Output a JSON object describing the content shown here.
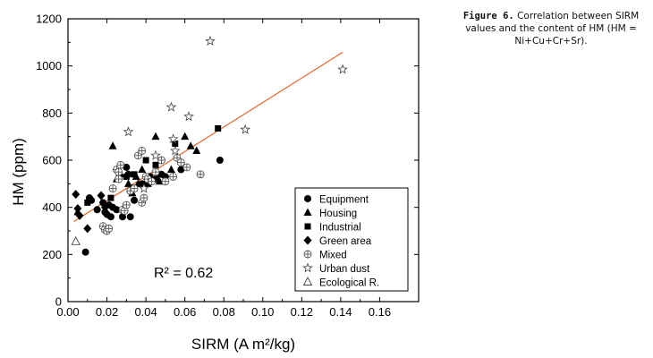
{
  "caption": {
    "label": "Figure 6.",
    "text": "Correlation between SIRM values and the content of HM (HM = Ni+Cu+Cr+Sr)."
  },
  "chart_data": {
    "type": "scatter",
    "title": "",
    "xlabel": "SIRM (A m²/kg)",
    "ylabel": "HM (ppm)",
    "xlim": [
      0.0,
      0.18
    ],
    "ylim": [
      0,
      1200
    ],
    "x_ticks": [
      0.0,
      0.02,
      0.04,
      0.06,
      0.08,
      0.1,
      0.12,
      0.14,
      0.16
    ],
    "x_tick_labels": [
      "0.00",
      "0.02",
      "0.04",
      "0.06",
      "0.08",
      "0.10",
      "0.12",
      "0.14",
      "0.16"
    ],
    "y_ticks": [
      0,
      200,
      400,
      600,
      800,
      1000,
      1200
    ],
    "y_tick_labels": [
      "0",
      "200",
      "400",
      "600",
      "800",
      "1000",
      "1200"
    ],
    "annotation": "R² = 0.62",
    "legend_position": "bottom-right",
    "regression": {
      "x": [
        0.003,
        0.141
      ],
      "y": [
        340,
        1058
      ],
      "color": "#e0682a"
    },
    "series": [
      {
        "name": "Equipment",
        "marker": "circle",
        "points": [
          [
            0.009,
            210
          ],
          [
            0.012,
            430
          ],
          [
            0.011,
            440
          ],
          [
            0.015,
            390
          ],
          [
            0.018,
            420
          ],
          [
            0.019,
            380
          ],
          [
            0.02,
            370
          ],
          [
            0.021,
            410
          ],
          [
            0.022,
            360
          ],
          [
            0.023,
            400
          ],
          [
            0.025,
            390
          ],
          [
            0.028,
            360
          ],
          [
            0.03,
            570
          ],
          [
            0.031,
            540
          ],
          [
            0.032,
            360
          ],
          [
            0.034,
            430
          ],
          [
            0.038,
            500
          ],
          [
            0.04,
            500
          ],
          [
            0.042,
            530
          ],
          [
            0.045,
            520
          ],
          [
            0.046,
            540
          ],
          [
            0.048,
            540
          ],
          [
            0.05,
            530
          ],
          [
            0.058,
            560
          ],
          [
            0.078,
            600
          ]
        ]
      },
      {
        "name": "Housing",
        "marker": "triangle",
        "points": [
          [
            0.005,
            380
          ],
          [
            0.023,
            660
          ],
          [
            0.025,
            520
          ],
          [
            0.027,
            540
          ],
          [
            0.031,
            500
          ],
          [
            0.033,
            460
          ],
          [
            0.035,
            530
          ],
          [
            0.036,
            500
          ],
          [
            0.038,
            560
          ],
          [
            0.041,
            500
          ],
          [
            0.043,
            520
          ],
          [
            0.045,
            700
          ],
          [
            0.047,
            510
          ],
          [
            0.053,
            560
          ],
          [
            0.06,
            700
          ],
          [
            0.063,
            660
          ],
          [
            0.066,
            640
          ]
        ]
      },
      {
        "name": "Industrial",
        "marker": "square",
        "points": [
          [
            0.01,
            420
          ],
          [
            0.022,
            440
          ],
          [
            0.03,
            530
          ],
          [
            0.034,
            540
          ],
          [
            0.04,
            600
          ],
          [
            0.045,
            580
          ],
          [
            0.055,
            670
          ],
          [
            0.077,
            735
          ]
        ]
      },
      {
        "name": "Green area",
        "marker": "diamond",
        "points": [
          [
            0.004,
            455
          ],
          [
            0.005,
            395
          ],
          [
            0.006,
            365
          ],
          [
            0.01,
            310
          ],
          [
            0.017,
            450
          ],
          [
            0.019,
            400
          ],
          [
            0.033,
            480
          ]
        ]
      },
      {
        "name": "Mixed",
        "marker": "circle-plus",
        "points": [
          [
            0.018,
            320
          ],
          [
            0.019,
            305
          ],
          [
            0.02,
            300
          ],
          [
            0.021,
            310
          ],
          [
            0.023,
            480
          ],
          [
            0.025,
            560
          ],
          [
            0.026,
            520
          ],
          [
            0.026,
            550
          ],
          [
            0.027,
            580
          ],
          [
            0.028,
            390
          ],
          [
            0.029,
            385
          ],
          [
            0.03,
            410
          ],
          [
            0.032,
            470
          ],
          [
            0.034,
            480
          ],
          [
            0.036,
            620
          ],
          [
            0.038,
            640
          ],
          [
            0.038,
            420
          ],
          [
            0.039,
            440
          ],
          [
            0.04,
            530
          ],
          [
            0.041,
            520
          ],
          [
            0.043,
            510
          ],
          [
            0.045,
            550
          ],
          [
            0.048,
            600
          ],
          [
            0.05,
            510
          ],
          [
            0.054,
            530
          ],
          [
            0.056,
            610
          ],
          [
            0.058,
            590
          ],
          [
            0.061,
            570
          ],
          [
            0.068,
            540
          ]
        ]
      },
      {
        "name": "Urban dust",
        "marker": "star",
        "points": [
          [
            0.031,
            720
          ],
          [
            0.039,
            480
          ],
          [
            0.045,
            620
          ],
          [
            0.053,
            825
          ],
          [
            0.054,
            690
          ],
          [
            0.055,
            640
          ],
          [
            0.062,
            785
          ],
          [
            0.073,
            1105
          ],
          [
            0.091,
            730
          ],
          [
            0.141,
            985
          ]
        ]
      },
      {
        "name": "Ecological R.",
        "marker": "triangle-open",
        "points": [
          [
            0.004,
            255
          ]
        ]
      }
    ]
  }
}
